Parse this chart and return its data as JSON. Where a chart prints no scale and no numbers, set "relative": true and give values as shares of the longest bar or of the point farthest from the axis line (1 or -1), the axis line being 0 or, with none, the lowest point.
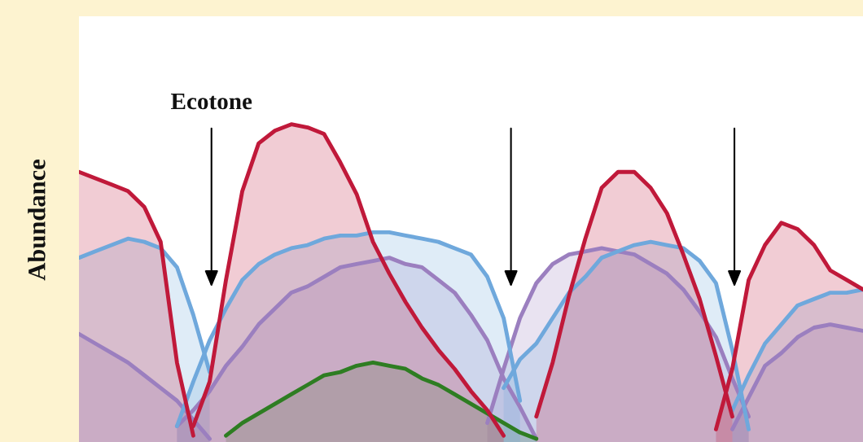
{
  "chart_data": {
    "type": "area",
    "relative": true,
    "ylabel": "Abundance",
    "annotations": [
      "Ecotone"
    ],
    "categories": [
      null,
      null,
      null,
      null,
      null,
      null,
      null,
      null,
      null,
      null,
      null,
      null,
      null,
      null,
      null,
      null,
      null,
      null,
      null,
      null,
      null,
      null,
      null,
      null,
      null,
      null,
      null,
      null,
      null,
      null,
      null,
      null,
      null,
      null,
      null,
      null,
      null,
      null,
      null,
      null,
      null,
      null,
      null,
      null,
      null,
      null,
      null,
      null,
      null
    ],
    "series": [
      {
        "color": "#9b7fbf",
        "values": [
          0.34,
          0.31,
          0.28,
          0.25,
          0.21,
          0.17,
          0.13,
          0.07,
          0.01,
          null,
          null,
          null,
          null,
          null,
          null,
          null,
          null,
          null,
          null,
          null,
          null,
          null,
          null,
          null,
          null,
          null,
          null,
          null,
          null,
          null,
          null,
          null,
          null,
          null,
          null,
          null,
          null,
          null,
          null,
          null,
          null,
          null,
          null,
          null,
          null,
          null,
          null,
          null,
          null
        ]
      },
      {
        "color": "#9b7fbf",
        "values": [
          null,
          null,
          null,
          null,
          null,
          null,
          0.05,
          0.1,
          0.16,
          0.24,
          0.3,
          0.37,
          0.42,
          0.47,
          0.49,
          0.52,
          0.55,
          0.56,
          0.57,
          0.58,
          0.56,
          0.55,
          0.51,
          0.47,
          0.4,
          0.32,
          0.2,
          0.11,
          0.01,
          null,
          null,
          null,
          null,
          null,
          null,
          null,
          null,
          null,
          null,
          null,
          null,
          null,
          null,
          null,
          null,
          null,
          null,
          null,
          null
        ]
      },
      {
        "color": "#9b7fbf",
        "values": [
          null,
          null,
          null,
          null,
          null,
          null,
          null,
          null,
          null,
          null,
          null,
          null,
          null,
          null,
          null,
          null,
          null,
          null,
          null,
          null,
          null,
          null,
          null,
          null,
          null,
          0.06,
          0.23,
          0.39,
          0.5,
          0.56,
          0.59,
          0.6,
          0.61,
          0.6,
          0.59,
          0.56,
          0.53,
          0.48,
          0.41,
          0.33,
          0.2,
          0.08,
          null,
          null,
          null,
          null,
          null,
          null,
          null
        ]
      },
      {
        "color": "#9b7fbf",
        "values": [
          null,
          null,
          null,
          null,
          null,
          null,
          null,
          null,
          null,
          null,
          null,
          null,
          null,
          null,
          null,
          null,
          null,
          null,
          null,
          null,
          null,
          null,
          null,
          null,
          null,
          null,
          null,
          null,
          null,
          null,
          null,
          null,
          null,
          null,
          null,
          null,
          null,
          null,
          null,
          null,
          0.04,
          0.14,
          0.24,
          0.28,
          0.33,
          0.36,
          0.37,
          0.36,
          0.35
        ]
      },
      {
        "color": "#2e7d22",
        "values": [
          null,
          null,
          null,
          null,
          null,
          null,
          null,
          null,
          null,
          0.02,
          0.06,
          0.09,
          0.12,
          0.15,
          0.18,
          0.21,
          0.22,
          0.24,
          0.25,
          0.24,
          0.23,
          0.2,
          0.18,
          0.15,
          0.12,
          0.09,
          0.06,
          0.03,
          0.01,
          null,
          null,
          null,
          null,
          null,
          null,
          null,
          null,
          null,
          null,
          null,
          null,
          null,
          null,
          null,
          null,
          null,
          null,
          null,
          null
        ]
      },
      {
        "color": "#6fa8dc",
        "values": [
          0.58,
          0.6,
          0.62,
          0.64,
          0.63,
          0.61,
          0.55,
          0.4,
          0.22,
          null,
          null,
          null,
          null,
          null,
          null,
          null,
          null,
          null,
          null,
          null,
          null,
          null,
          null,
          null,
          null,
          null,
          null,
          null,
          null,
          null,
          null,
          null,
          null,
          null,
          null,
          null,
          null,
          null,
          null,
          null,
          null,
          null,
          null,
          null,
          null,
          null,
          null,
          null,
          null
        ]
      },
      {
        "color": "#6fa8dc",
        "values": [
          null,
          null,
          null,
          null,
          null,
          null,
          0.05,
          0.19,
          0.32,
          0.42,
          0.51,
          0.56,
          0.59,
          0.61,
          0.62,
          0.64,
          0.65,
          0.65,
          0.66,
          0.66,
          0.65,
          0.64,
          0.63,
          0.61,
          0.59,
          0.52,
          0.39,
          0.13,
          null,
          null,
          null,
          null,
          null,
          null,
          null,
          null,
          null,
          null,
          null,
          null,
          null,
          null,
          null,
          null,
          null,
          null,
          null,
          null,
          null
        ]
      },
      {
        "color": "#6fa8dc",
        "values": [
          null,
          null,
          null,
          null,
          null,
          null,
          null,
          null,
          null,
          null,
          null,
          null,
          null,
          null,
          null,
          null,
          null,
          null,
          null,
          null,
          null,
          null,
          null,
          null,
          null,
          null,
          0.17,
          0.26,
          0.31,
          0.39,
          0.47,
          0.52,
          0.58,
          0.6,
          0.62,
          0.63,
          0.62,
          0.61,
          0.57,
          0.5,
          0.29,
          0.04,
          null,
          null,
          null,
          null,
          null,
          null,
          null
        ]
      },
      {
        "color": "#6fa8dc",
        "values": [
          null,
          null,
          null,
          null,
          null,
          null,
          null,
          null,
          null,
          null,
          null,
          null,
          null,
          null,
          null,
          null,
          null,
          null,
          null,
          null,
          null,
          null,
          null,
          null,
          null,
          null,
          null,
          null,
          null,
          null,
          null,
          null,
          null,
          null,
          null,
          null,
          null,
          null,
          null,
          null,
          0.1,
          0.21,
          0.31,
          0.37,
          0.43,
          0.45,
          0.47,
          0.47,
          0.48
        ]
      },
      {
        "color": "#c0193a",
        "values": [
          0.85,
          0.83,
          0.81,
          0.79,
          0.74,
          0.63,
          0.25,
          0.02,
          null,
          null,
          null,
          null,
          null,
          null,
          null,
          null,
          null,
          null,
          null,
          null,
          null,
          null,
          null,
          null,
          null,
          null,
          null,
          null,
          null,
          null,
          null,
          null,
          null,
          null,
          null,
          null,
          null,
          null,
          null,
          null,
          null,
          null,
          null,
          null,
          null,
          null,
          null,
          null,
          null
        ]
      },
      {
        "color": "#c0193a",
        "values": [
          null,
          null,
          null,
          null,
          null,
          null,
          null,
          0.05,
          0.19,
          0.51,
          0.79,
          0.94,
          0.98,
          1.0,
          0.99,
          0.97,
          0.88,
          0.78,
          0.63,
          0.53,
          0.44,
          0.36,
          0.29,
          0.23,
          0.16,
          0.1,
          0.02,
          null,
          null,
          null,
          null,
          null,
          null,
          null,
          null,
          null,
          null,
          null,
          null,
          null,
          null,
          null,
          null,
          null,
          null,
          null,
          null,
          null,
          null
        ]
      },
      {
        "color": "#c0193a",
        "values": [
          null,
          null,
          null,
          null,
          null,
          null,
          null,
          null,
          null,
          null,
          null,
          null,
          null,
          null,
          null,
          null,
          null,
          null,
          null,
          null,
          null,
          null,
          null,
          null,
          null,
          null,
          null,
          null,
          0.08,
          0.25,
          0.46,
          0.64,
          0.8,
          0.85,
          0.85,
          0.8,
          0.72,
          0.59,
          0.45,
          0.27,
          0.08,
          null,
          null,
          null,
          null,
          null,
          null,
          null,
          null
        ]
      },
      {
        "color": "#c0193a",
        "values": [
          null,
          null,
          null,
          null,
          null,
          null,
          null,
          null,
          null,
          null,
          null,
          null,
          null,
          null,
          null,
          null,
          null,
          null,
          null,
          null,
          null,
          null,
          null,
          null,
          null,
          null,
          null,
          null,
          null,
          null,
          null,
          null,
          null,
          null,
          null,
          null,
          null,
          null,
          null,
          0.04,
          0.23,
          0.51,
          0.62,
          0.69,
          0.67,
          0.62,
          0.54,
          0.51,
          0.48
        ]
      }
    ]
  }
}
